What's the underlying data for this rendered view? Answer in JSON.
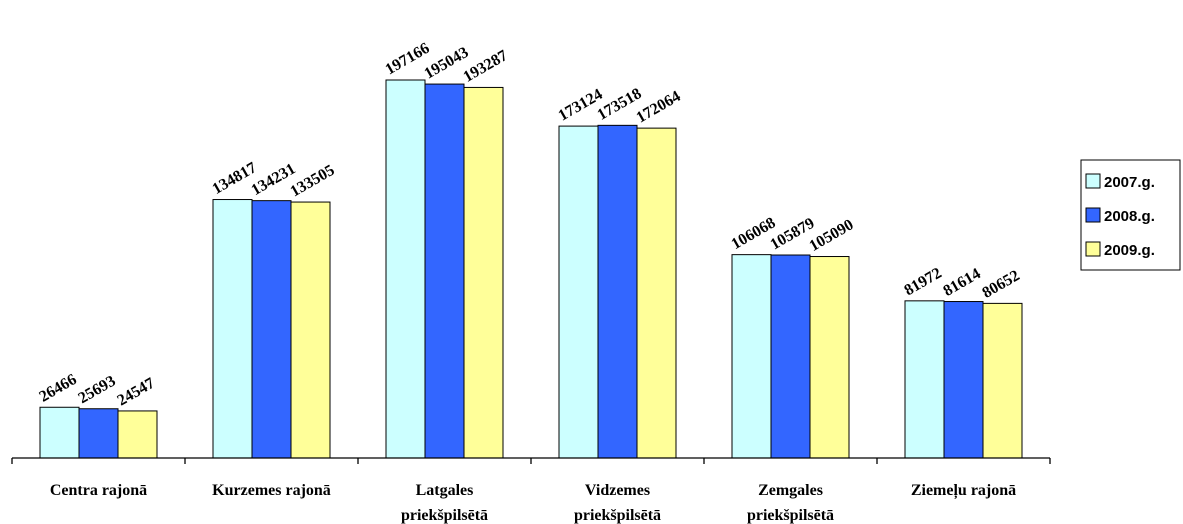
{
  "chart_data": {
    "type": "bar",
    "categories": [
      [
        "Centra rajonā"
      ],
      [
        "Kurzemes rajonā"
      ],
      [
        "Latgales",
        "priekšpilsētā"
      ],
      [
        "Vidzemes",
        "priekšpilsētā"
      ],
      [
        "Zemgales",
        "priekšpilsētā"
      ],
      [
        "Ziemeļu rajonā"
      ]
    ],
    "series": [
      {
        "name": "2007.g.",
        "color": "#ccffff",
        "values": [
          26466,
          134817,
          197166,
          173124,
          106068,
          81972
        ]
      },
      {
        "name": "2008.g.",
        "color": "#3366ff",
        "values": [
          25693,
          134231,
          195043,
          173518,
          105879,
          81614
        ]
      },
      {
        "name": "2009.g.",
        "color": "#ffff99",
        "values": [
          24547,
          133505,
          193287,
          172064,
          105090,
          80652
        ]
      }
    ],
    "ylim": [
      0,
      220000
    ],
    "grid": false,
    "legend_position": "right",
    "data_labels": true
  }
}
